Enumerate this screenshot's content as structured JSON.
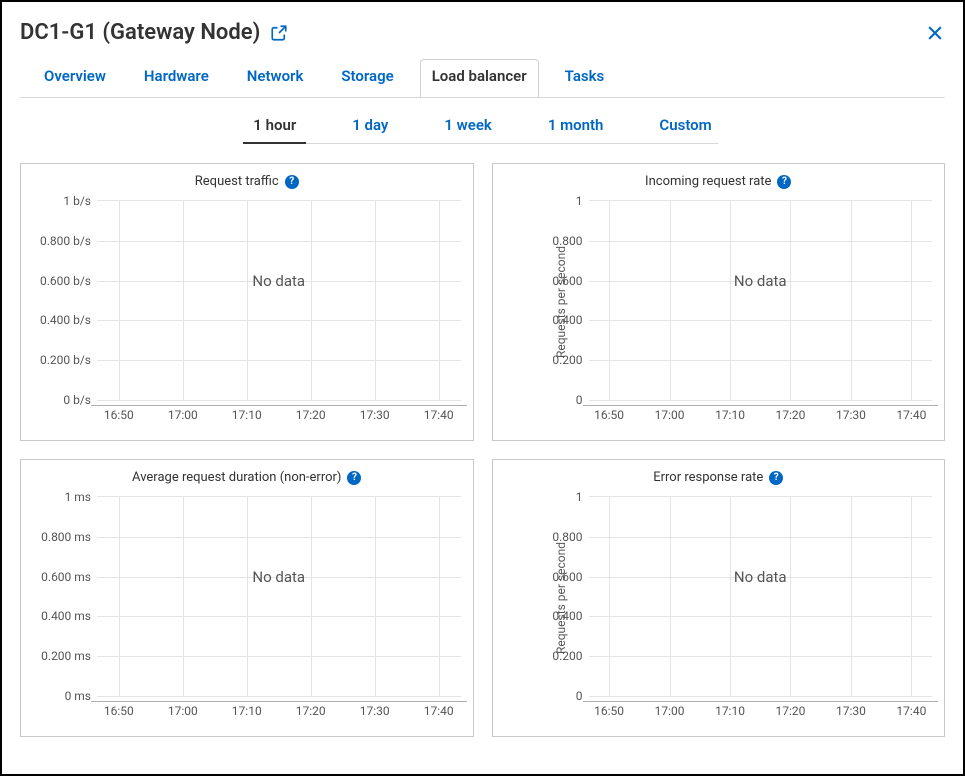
{
  "header": {
    "title": "DC1-G1 (Gateway Node)"
  },
  "tabs": [
    {
      "label": "Overview",
      "active": false
    },
    {
      "label": "Hardware",
      "active": false
    },
    {
      "label": "Network",
      "active": false
    },
    {
      "label": "Storage",
      "active": false
    },
    {
      "label": "Load balancer",
      "active": true
    },
    {
      "label": "Tasks",
      "active": false
    }
  ],
  "time_tabs": [
    {
      "label": "1 hour",
      "active": true
    },
    {
      "label": "1 day",
      "active": false
    },
    {
      "label": "1 week",
      "active": false
    },
    {
      "label": "1 month",
      "active": false
    },
    {
      "label": "Custom",
      "active": false
    }
  ],
  "no_data_label": "No data",
  "charts": [
    {
      "title": "Request traffic",
      "type": "line",
      "y_axis_label": null,
      "y_ticks": [
        "1 b/s",
        "0.800 b/s",
        "0.600 b/s",
        "0.400 b/s",
        "0.200 b/s",
        "0 b/s"
      ],
      "x_ticks": [
        "16:50",
        "17:00",
        "17:10",
        "17:20",
        "17:30",
        "17:40"
      ],
      "colors": {
        "grid": "#e4e4e4",
        "axis": "#b0b0b0",
        "text": "#555555",
        "bg": "#ffffff"
      }
    },
    {
      "title": "Incoming request rate",
      "type": "line",
      "y_axis_label": "Requests per second",
      "y_ticks": [
        "1",
        "0.800",
        "0.600",
        "0.400",
        "0.200",
        "0"
      ],
      "x_ticks": [
        "16:50",
        "17:00",
        "17:10",
        "17:20",
        "17:30",
        "17:40"
      ],
      "colors": {
        "grid": "#e4e4e4",
        "axis": "#b0b0b0",
        "text": "#555555",
        "bg": "#ffffff"
      }
    },
    {
      "title": "Average request duration (non-error)",
      "type": "line",
      "y_axis_label": null,
      "y_ticks": [
        "1 ms",
        "0.800 ms",
        "0.600 ms",
        "0.400 ms",
        "0.200 ms",
        "0 ms"
      ],
      "x_ticks": [
        "16:50",
        "17:00",
        "17:10",
        "17:20",
        "17:30",
        "17:40"
      ],
      "colors": {
        "grid": "#e4e4e4",
        "axis": "#b0b0b0",
        "text": "#555555",
        "bg": "#ffffff"
      }
    },
    {
      "title": "Error response rate",
      "type": "line",
      "y_axis_label": "Requests per second",
      "y_ticks": [
        "1",
        "0.800",
        "0.600",
        "0.400",
        "0.200",
        "0"
      ],
      "x_ticks": [
        "16:50",
        "17:00",
        "17:10",
        "17:20",
        "17:30",
        "17:40"
      ],
      "colors": {
        "grid": "#e4e4e4",
        "axis": "#b0b0b0",
        "text": "#555555",
        "bg": "#ffffff"
      }
    }
  ]
}
